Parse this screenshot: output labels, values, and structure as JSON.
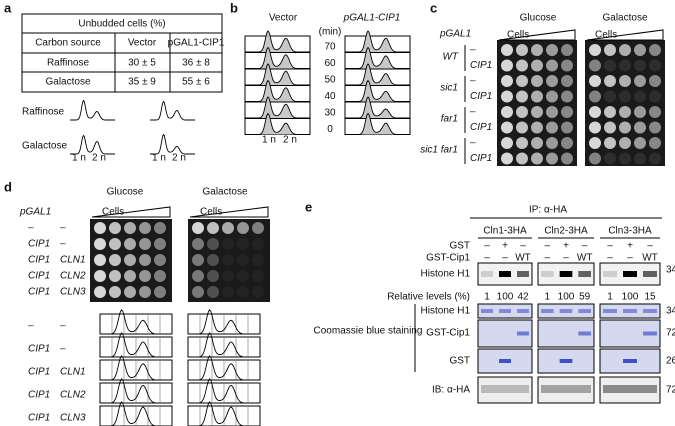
{
  "panels": [
    "a",
    "b",
    "c",
    "d",
    "e"
  ],
  "panel_a": {
    "table_title": "Unbudded cells (%)",
    "columns": [
      "Carbon source",
      "Vector",
      "pGAL1-CIP1"
    ],
    "rows": [
      [
        "Raffinose",
        "30 ± 5",
        "36 ± 8"
      ],
      [
        "Galactose",
        "35 ± 9",
        "55 ± 6"
      ]
    ],
    "flow_rows": [
      "Raffinose",
      "Galactose"
    ],
    "axis": [
      "1 n",
      "2 n"
    ]
  },
  "panel_b": {
    "columns": [
      "Vector",
      "pGAL1-CIP1"
    ],
    "unit": "(min)",
    "times": [
      "70",
      "60",
      "50",
      "40",
      "30",
      "0"
    ],
    "axis": [
      "1 n",
      "2 n"
    ]
  },
  "panel_c": {
    "media": [
      "Glucose",
      "Galactose"
    ],
    "promoter": "pGAL1",
    "cells": "Cells",
    "strains": [
      "WT",
      "sic1",
      "far1",
      "sic1\nfar1"
    ],
    "constructs": [
      "–",
      "CIP1"
    ]
  },
  "panel_d": {
    "media": [
      "Glucose",
      "Galactose"
    ],
    "promoter": "pGAL1",
    "cells": "Cells",
    "rows": [
      [
        "–",
        "–"
      ],
      [
        "CIP1",
        "–"
      ],
      [
        "CIP1",
        "CLN1"
      ],
      [
        "CIP1",
        "CLN2"
      ],
      [
        "CIP1",
        "CLN3"
      ]
    ],
    "flow_rows": [
      [
        "–",
        "–"
      ],
      [
        "CIP1",
        "–"
      ],
      [
        "CIP1",
        "CLN1"
      ],
      [
        "CIP1",
        "CLN2"
      ],
      [
        "CIP1",
        "CLN3"
      ]
    ]
  },
  "panel_e": {
    "ip": "IP: α-HA",
    "groups": [
      "Cln1-3HA",
      "Cln2-3HA",
      "Cln3-3HA"
    ],
    "treatments": [
      {
        "name": "GST",
        "lanes": [
          "–",
          "+",
          "–"
        ]
      },
      {
        "name": "GST-Cip1",
        "lanes": [
          "–",
          "–",
          "WT"
        ]
      }
    ],
    "blot": "Histone H1",
    "blot_marker": "34",
    "relative_label": "Relative levels (%)",
    "relative": [
      [
        "1",
        "100",
        "42"
      ],
      [
        "1",
        "100",
        "59"
      ],
      [
        "1",
        "100",
        "15"
      ]
    ],
    "stain": "Coomassie blue staining",
    "stain_rows": [
      {
        "name": "Histone H1",
        "marker": "34"
      },
      {
        "name": "GST-Cip1",
        "marker": "72"
      },
      {
        "name": "GST",
        "marker": "26"
      }
    ],
    "ib": "IB: α-HA",
    "ib_marker": "72"
  }
}
